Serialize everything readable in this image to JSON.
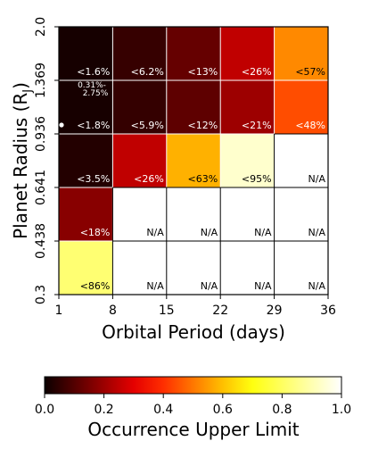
{
  "chart_data": {
    "type": "heatmap",
    "xlabel": "Orbital Period (days)",
    "ylabel": "Planet Radius (R",
    "ylabel_sub": "J",
    "ylabel_close": ")",
    "x_edges": [
      1,
      8,
      15,
      22,
      29,
      36
    ],
    "y_edges": [
      0.3,
      0.438,
      0.641,
      0.936,
      1.369,
      2.0
    ],
    "x_tick_labels": [
      "1",
      "8",
      "15",
      "22",
      "29",
      "36"
    ],
    "y_tick_labels": [
      "0.3",
      "0.438",
      "0.641",
      "0.936",
      "1.369",
      "2.0"
    ],
    "rows_top_to_bottom": [
      {
        "values": [
          0.016,
          0.062,
          0.13,
          0.26,
          0.57
        ],
        "labels": [
          "<1.6%",
          "<6.2%",
          "<13%",
          "<26%",
          "<57%"
        ]
      },
      {
        "values": [
          0.018,
          0.059,
          0.12,
          0.21,
          0.48
        ],
        "labels": [
          "<1.8%",
          "<5.9%",
          "<12%",
          "<21%",
          "<48%"
        ]
      },
      {
        "values": [
          0.035,
          0.26,
          0.63,
          0.95,
          null
        ],
        "labels": [
          "<3.5%",
          "<26%",
          "<63%",
          "<95%",
          "N/A"
        ]
      },
      {
        "values": [
          0.18,
          null,
          null,
          null,
          null
        ],
        "labels": [
          "<18%",
          "N/A",
          "N/A",
          "N/A",
          "N/A"
        ]
      },
      {
        "values": [
          0.86,
          null,
          null,
          null,
          null
        ],
        "labels": [
          "<86%",
          "N/A",
          "N/A",
          "N/A",
          "N/A"
        ]
      }
    ],
    "annotation": {
      "text_line1": "0.31%-",
      "text_line2": "2.75%"
    },
    "colorbar": {
      "label": "Occurrence Upper Limit",
      "range": [
        0.0,
        1.0
      ],
      "ticks": [
        "0.0",
        "0.2",
        "0.4",
        "0.6",
        "0.8",
        "1.0"
      ],
      "colormap": "hot"
    }
  }
}
